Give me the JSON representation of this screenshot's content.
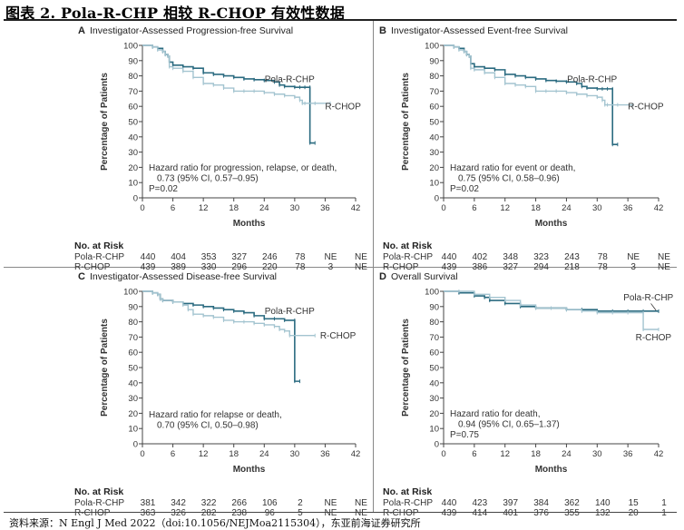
{
  "header": {
    "figure_title": "图表 2.  Pola-R-CHP 相较 R-CHOP 有效性数据"
  },
  "footer": {
    "source": "资料来源：N Engl J Med 2022（doi:10.1056/NEJMoa2115304），东亚前海证券研究所"
  },
  "colors": {
    "pola_r_chp": "#2b6b80",
    "r_chop": "#a3c4d0",
    "axis": "#444444"
  },
  "chart_data": [
    {
      "type": "line",
      "panel": "A",
      "title": "Investigator-Assessed Progression-free Survival",
      "xlabel": "Months",
      "ylabel": "Percentage of Patients",
      "xlim": [
        0,
        42
      ],
      "ylim": [
        0,
        100
      ],
      "xticks": [
        0,
        6,
        12,
        18,
        24,
        30,
        36,
        42
      ],
      "yticks": [
        0,
        10,
        20,
        30,
        40,
        50,
        60,
        70,
        80,
        90,
        100
      ],
      "annotation": [
        "Hazard ratio for progression, relapse, or death,",
        "0.73 (95% CI, 0.57–0.95)",
        "P=0.02"
      ],
      "series": [
        {
          "name": "Pola-R-CHP",
          "label_pos": "above",
          "x": [
            0,
            2,
            3,
            4,
            4.5,
            5,
            5.3,
            6,
            8,
            10,
            12,
            14,
            16,
            18,
            20,
            22,
            24,
            26,
            27,
            28,
            30,
            31,
            32,
            33,
            33,
            34
          ],
          "y": [
            100,
            99,
            98,
            96,
            94,
            93,
            89,
            87,
            86,
            85,
            82,
            81,
            80,
            79,
            78,
            77.5,
            77,
            76,
            74,
            73,
            72.5,
            72.5,
            72.5,
            72.5,
            36,
            36
          ]
        },
        {
          "name": "R-CHOP",
          "label_pos": "right",
          "x": [
            0,
            2,
            3,
            4,
            4.5,
            5,
            5.3,
            6,
            8,
            10,
            12,
            14,
            16,
            18,
            20,
            22,
            24,
            26,
            28,
            30,
            31,
            31.5,
            32,
            34,
            37
          ],
          "y": [
            100,
            99,
            97,
            96,
            94,
            93,
            86,
            85,
            83,
            79,
            75,
            74,
            72,
            70,
            70,
            70,
            69,
            68,
            67,
            66,
            64,
            62,
            62,
            62,
            62
          ]
        }
      ],
      "risk_table": {
        "header": "No. at Risk",
        "rows": [
          {
            "name": "Pola-R-CHP",
            "values": [
              "440",
              "404",
              "353",
              "327",
              "246",
              "78",
              "NE",
              "NE"
            ]
          },
          {
            "name": "R-CHOP",
            "values": [
              "439",
              "389",
              "330",
              "296",
              "220",
              "78",
              "3",
              "NE"
            ]
          }
        ]
      }
    },
    {
      "type": "line",
      "panel": "B",
      "title": "Investigator-Assessed Event-free Survival",
      "xlabel": "Months",
      "ylabel": "Percentage of Patients",
      "xlim": [
        0,
        42
      ],
      "ylim": [
        0,
        100
      ],
      "xticks": [
        0,
        6,
        12,
        18,
        24,
        30,
        36,
        42
      ],
      "yticks": [
        0,
        10,
        20,
        30,
        40,
        50,
        60,
        70,
        80,
        90,
        100
      ],
      "annotation": [
        "Hazard ratio for event or death,",
        "0.75 (95% CI, 0.58–0.96)",
        "P=0.02"
      ],
      "series": [
        {
          "name": "Pola-R-CHP",
          "label_pos": "above",
          "x": [
            0,
            2,
            3,
            4,
            4.5,
            5,
            5.3,
            6,
            8,
            10,
            12,
            14,
            16,
            18,
            20,
            22,
            24,
            26,
            27,
            28,
            30,
            31,
            32,
            33,
            33,
            34
          ],
          "y": [
            100,
            99,
            98,
            96,
            94,
            93,
            88,
            86,
            85,
            84,
            81,
            80,
            79,
            78,
            77,
            76.5,
            76,
            75,
            73,
            72,
            71.5,
            71.5,
            71.5,
            71.5,
            35,
            35
          ]
        },
        {
          "name": "R-CHOP",
          "label_pos": "right",
          "x": [
            0,
            2,
            3,
            4,
            4.5,
            5,
            5.3,
            6,
            8,
            10,
            12,
            14,
            16,
            18,
            20,
            22,
            24,
            26,
            28,
            30,
            31,
            31.5,
            32,
            34,
            37
          ],
          "y": [
            100,
            99,
            97,
            96,
            94,
            93,
            85,
            84,
            82,
            79,
            75,
            74,
            73,
            70,
            70,
            70,
            69,
            68,
            67,
            66,
            64,
            61,
            61,
            61,
            61
          ]
        }
      ],
      "risk_table": {
        "header": "No. at Risk",
        "rows": [
          {
            "name": "Pola-R-CHP",
            "values": [
              "440",
              "402",
              "348",
              "323",
              "243",
              "78",
              "NE",
              "NE"
            ]
          },
          {
            "name": "R-CHOP",
            "values": [
              "439",
              "386",
              "327",
              "294",
              "218",
              "78",
              "3",
              "NE"
            ]
          }
        ]
      }
    },
    {
      "type": "line",
      "panel": "C",
      "title": "Investigator-Assessed Disease-free Survival",
      "xlabel": "Months",
      "ylabel": "Percentage of Patients",
      "xlim": [
        0,
        42
      ],
      "ylim": [
        0,
        100
      ],
      "xticks": [
        0,
        6,
        12,
        18,
        24,
        30,
        36,
        42
      ],
      "yticks": [
        0,
        10,
        20,
        30,
        40,
        50,
        60,
        70,
        80,
        90,
        100
      ],
      "annotation": [
        "Hazard ratio for relapse or death,",
        "0.70 (95% CI, 0.50–0.98)"
      ],
      "series": [
        {
          "name": "Pola-R-CHP",
          "label_pos": "above",
          "x": [
            0,
            2,
            3,
            3.5,
            4,
            6,
            8,
            10,
            12,
            14,
            16,
            18,
            20,
            22,
            24,
            26,
            28,
            30,
            30,
            31
          ],
          "y": [
            100,
            99,
            98,
            95,
            94,
            93,
            92,
            91,
            90,
            89,
            88,
            87,
            86,
            84,
            82,
            82,
            81,
            81,
            41,
            41
          ]
        },
        {
          "name": "R-CHOP",
          "label_pos": "right",
          "x": [
            0,
            2,
            3,
            3.5,
            4,
            6,
            8,
            9,
            10,
            12,
            14,
            16,
            18,
            20,
            22,
            24,
            26,
            27,
            28,
            29,
            34
          ],
          "y": [
            100,
            99,
            98,
            95,
            94,
            93,
            91,
            88,
            85,
            84,
            83,
            81,
            80,
            80,
            79,
            78,
            77,
            75,
            74,
            71,
            71
          ]
        }
      ],
      "risk_table": {
        "header": "No. at Risk",
        "rows": [
          {
            "name": "Pola-R-CHP",
            "values": [
              "381",
              "342",
              "322",
              "266",
              "106",
              "2",
              "NE",
              "NE"
            ]
          },
          {
            "name": "R-CHOP",
            "values": [
              "363",
              "326",
              "282",
              "238",
              "96",
              "5",
              "NE",
              "NE"
            ]
          }
        ]
      }
    },
    {
      "type": "line",
      "panel": "D",
      "title": "Overall Survival",
      "xlabel": "Months",
      "ylabel": "Percentage of Patients",
      "xlim": [
        0,
        42
      ],
      "ylim": [
        0,
        100
      ],
      "xticks": [
        0,
        6,
        12,
        18,
        24,
        30,
        36,
        42
      ],
      "yticks": [
        0,
        10,
        20,
        30,
        40,
        50,
        60,
        70,
        80,
        90,
        100
      ],
      "annotation": [
        "Hazard ratio for death,",
        "0.94 (95% CI, 0.65–1.37)",
        "P=0.75"
      ],
      "series": [
        {
          "name": "Pola-R-CHP",
          "label_pos": "above",
          "x": [
            0,
            3,
            6,
            8,
            9,
            12,
            15,
            18,
            21,
            24,
            27,
            30,
            33,
            36,
            39,
            42
          ],
          "y": [
            100,
            99,
            97,
            96,
            94,
            92,
            90,
            89,
            89,
            88,
            88,
            87,
            87,
            87,
            87,
            87
          ]
        },
        {
          "name": "R-CHOP",
          "label_pos": "right",
          "x": [
            0,
            3,
            6,
            9,
            12,
            15,
            18,
            21,
            24,
            27,
            30,
            33,
            36,
            39,
            39,
            42
          ],
          "y": [
            100,
            100,
            98,
            96,
            94,
            91,
            89,
            89,
            88,
            87,
            86,
            86,
            86,
            86,
            75,
            75
          ]
        }
      ],
      "risk_table": {
        "header": "No. at Risk",
        "rows": [
          {
            "name": "Pola-R-CHP",
            "values": [
              "440",
              "423",
              "397",
              "384",
              "362",
              "140",
              "15",
              "1"
            ]
          },
          {
            "name": "R-CHOP",
            "values": [
              "439",
              "414",
              "401",
              "376",
              "355",
              "132",
              "20",
              "1"
            ]
          }
        ]
      }
    }
  ]
}
